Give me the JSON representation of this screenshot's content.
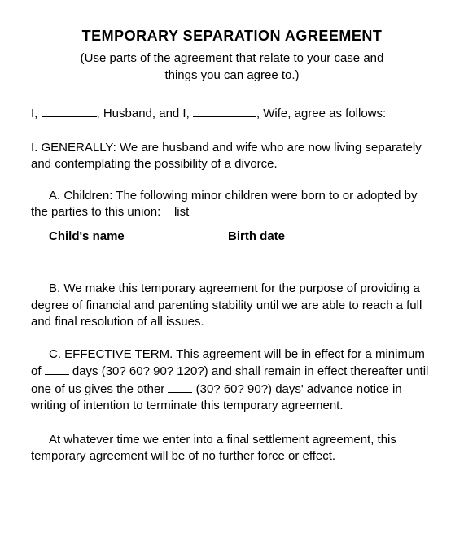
{
  "title": "TEMPORARY SEPARATION AGREEMENT",
  "subtitle": "(Use parts of the agreement that relate to your case and things you can agree to.)",
  "intro": {
    "prefix": "I,",
    "mid1": ", Husband, and I,",
    "mid2": ", Wife, agree as follows:"
  },
  "generally": {
    "heading": "I. GENERALLY:",
    "text": "We are husband and wife who are now living separately and contemplating the possibility of a divorce."
  },
  "sectionA": {
    "heading": "A. Children:",
    "text": "The following minor children were born to or adopted by the parties to this union:",
    "listLabel": "list"
  },
  "tableHeaders": {
    "childName": "Child's name",
    "birthDate": "Birth date"
  },
  "sectionB": "B. We make this temporary agreement for the purpose of providing a degree of financial  and parenting stability until we are able to reach a full and final resolution of all issues.",
  "sectionC": {
    "heading": "C. EFFECTIVE TERM.",
    "part1": "This agreement will be in effect for a minimum of",
    "hint1": "days (30? 60? 90? 120?) and shall remain in effect thereafter until one of us gives the other",
    "hint2": "(30? 60? 90?) days' advance notice in writing of intention to terminate this temporary agreement."
  },
  "final": "At whatever time we enter into a final settlement agreement, this temporary agreement will be of no further force or effect.",
  "colors": {
    "background": "#ffffff",
    "text": "#000000"
  },
  "typography": {
    "title_fontsize": 18,
    "body_fontsize": 15,
    "font_family": "Arial"
  }
}
